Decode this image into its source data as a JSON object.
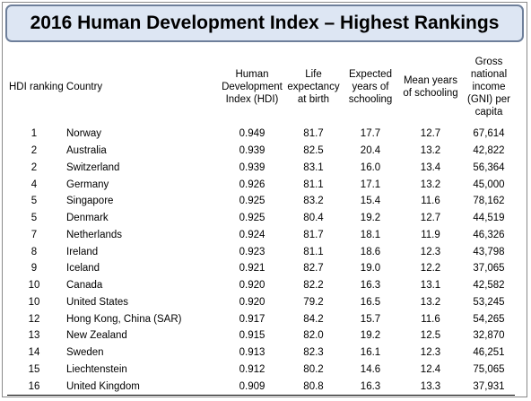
{
  "chart_data": {
    "type": "table",
    "title": "2016 Human Development Index – Highest Rankings",
    "columns": [
      "HDI ranking Country",
      "Human Development Index (HDI)",
      "Life expectancy at birth",
      "Expected years of schooling",
      "Mean years of schooling",
      "Gross national income (GNI) per capita"
    ],
    "rows": [
      {
        "rank": "1",
        "country": "Norway",
        "hdi": "0.949",
        "life": "81.7",
        "expected": "17.7",
        "mean": "12.7",
        "gni": "67,614"
      },
      {
        "rank": "2",
        "country": "Australia",
        "hdi": "0.939",
        "life": "82.5",
        "expected": "20.4",
        "mean": "13.2",
        "gni": "42,822"
      },
      {
        "rank": "2",
        "country": "Switzerland",
        "hdi": "0.939",
        "life": "83.1",
        "expected": "16.0",
        "mean": "13.4",
        "gni": "56,364"
      },
      {
        "rank": "4",
        "country": "Germany",
        "hdi": "0.926",
        "life": "81.1",
        "expected": "17.1",
        "mean": "13.2",
        "gni": "45,000"
      },
      {
        "rank": "5",
        "country": "Singapore",
        "hdi": "0.925",
        "life": "83.2",
        "expected": "15.4",
        "mean": "11.6",
        "gni": "78,162"
      },
      {
        "rank": "5",
        "country": "Denmark",
        "hdi": "0.925",
        "life": "80.4",
        "expected": "19.2",
        "mean": "12.7",
        "gni": "44,519"
      },
      {
        "rank": "7",
        "country": "Netherlands",
        "hdi": "0.924",
        "life": "81.7",
        "expected": "18.1",
        "mean": "11.9",
        "gni": "46,326"
      },
      {
        "rank": "8",
        "country": "Ireland",
        "hdi": "0.923",
        "life": "81.1",
        "expected": "18.6",
        "mean": "12.3",
        "gni": "43,798"
      },
      {
        "rank": "9",
        "country": "Iceland",
        "hdi": "0.921",
        "life": "82.7",
        "expected": "19.0",
        "mean": "12.2",
        "gni": "37,065"
      },
      {
        "rank": "10",
        "country": "Canada",
        "hdi": "0.920",
        "life": "82.2",
        "expected": "16.3",
        "mean": "13.1",
        "gni": "42,582"
      },
      {
        "rank": "10",
        "country": "United States",
        "hdi": "0.920",
        "life": "79.2",
        "expected": "16.5",
        "mean": "13.2",
        "gni": "53,245"
      },
      {
        "rank": "12",
        "country": "Hong Kong, China (SAR)",
        "hdi": "0.917",
        "life": "84.2",
        "expected": "15.7",
        "mean": "11.6",
        "gni": "54,265"
      },
      {
        "rank": "13",
        "country": "New Zealand",
        "hdi": "0.915",
        "life": "82.0",
        "expected": "19.2",
        "mean": "12.5",
        "gni": "32,870"
      },
      {
        "rank": "14",
        "country": "Sweden",
        "hdi": "0.913",
        "life": "82.3",
        "expected": "16.1",
        "mean": "12.3",
        "gni": "46,251"
      },
      {
        "rank": "15",
        "country": "Liechtenstein",
        "hdi": "0.912",
        "life": "80.2",
        "expected": "14.6",
        "mean": "12.4",
        "gni": "75,065"
      },
      {
        "rank": "16",
        "country": "United Kingdom",
        "hdi": "0.909",
        "life": "80.8",
        "expected": "16.3",
        "mean": "13.3",
        "gni": "37,931"
      }
    ]
  }
}
